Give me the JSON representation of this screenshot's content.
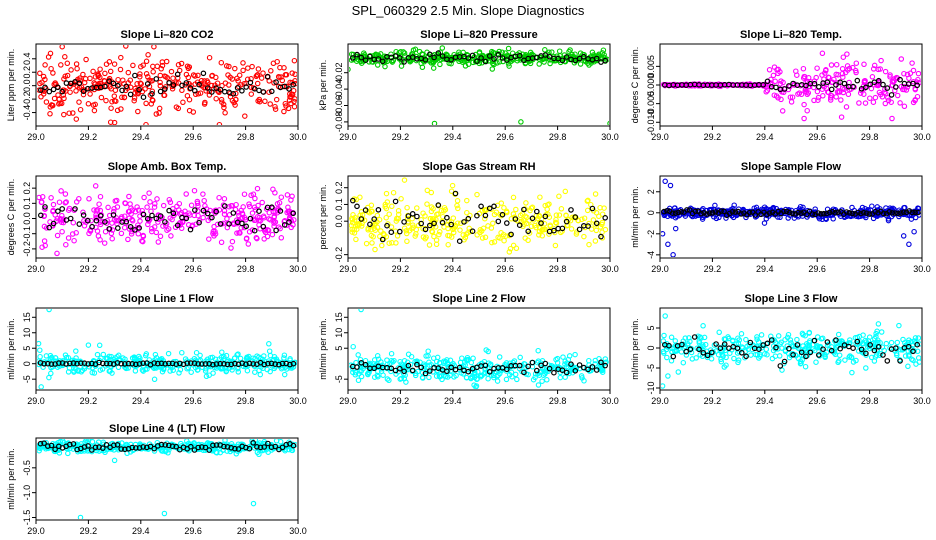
{
  "page_title": "SPL_060329  2.5 Min. Slope Diagnostics",
  "colors": {
    "red": "#ff0000",
    "green": "#00cc00",
    "magenta": "#ff00ff",
    "yellow": "#ffff00",
    "blue": "#0000dd",
    "cyan": "#00ffff",
    "overlay": "#000000"
  },
  "chart_data": [
    {
      "type": "scatter",
      "title": "Slope Li–820 CO2",
      "ylabel": "Liter ppm per min.",
      "color": "red",
      "xlim": [
        29.0,
        30.0
      ],
      "ylim": [
        -0.6,
        0.62
      ],
      "xticks": [
        29.0,
        29.2,
        29.4,
        29.6,
        29.8,
        30.0
      ],
      "xtick_labels": [
        "29.0",
        "29.2",
        "29.4",
        "29.6",
        "29.8",
        "30.0"
      ],
      "yticks": [
        -0.4,
        -0.2,
        0.0,
        0.2,
        0.4
      ],
      "ytick_labels": [
        "-0.4",
        "-0.2",
        "0.0",
        "0.2",
        "0.4"
      ],
      "points": 360,
      "spread": 0.22,
      "center": 0.0,
      "overlay_points": 60,
      "overlay_spread": 0.1,
      "outliers": [
        [
          29.1,
          0.58
        ],
        [
          29.45,
          0.58
        ],
        [
          29.42,
          -0.58
        ],
        [
          29.7,
          -0.58
        ],
        [
          29.3,
          -0.55
        ]
      ]
    },
    {
      "type": "scatter",
      "title": "Slope Li–820 Pressure",
      "ylabel": "kPa per min.",
      "color": "green",
      "xlim": [
        29.0,
        30.0
      ],
      "ylim": [
        -0.085,
        0.015
      ],
      "xticks": [
        29.0,
        29.2,
        29.4,
        29.6,
        29.8,
        30.0
      ],
      "xtick_labels": [
        "29.0",
        "29.2",
        "29.4",
        "29.6",
        "29.8",
        "30.0"
      ],
      "yticks": [
        -0.08,
        -0.06,
        -0.04,
        -0.02
      ],
      "ytick_labels": [
        "-0.08",
        "-0.06",
        "-0.04",
        "-0.02"
      ],
      "points": 380,
      "spread": 0.005,
      "center": -0.002,
      "overlay_points": 60,
      "overlay_spread": 0.003,
      "outliers": [
        [
          29.33,
          -0.082
        ],
        [
          29.66,
          -0.08
        ],
        [
          30.0,
          -0.082
        ],
        [
          29.0,
          -0.016
        ]
      ]
    },
    {
      "type": "scatter",
      "title": "Slope Li–820 Temp.",
      "ylabel": "degrees C per min.",
      "color": "magenta",
      "xlim": [
        29.0,
        30.0
      ],
      "ylim": [
        -0.011,
        0.011
      ],
      "xticks": [
        29.0,
        29.2,
        29.4,
        29.6,
        29.8,
        30.0
      ],
      "xtick_labels": [
        "29.0",
        "29.2",
        "29.4",
        "29.6",
        "29.8",
        "30.0"
      ],
      "yticks": [
        -0.01,
        -0.005,
        0.0,
        0.005
      ],
      "ytick_labels": [
        "-0.010",
        "-0.005",
        "0.000",
        "0.005"
      ],
      "points": 340,
      "spread": 0.0035,
      "center": 0.0,
      "overlay_points": 60,
      "overlay_spread": 0.001,
      "start_flat": 29.4,
      "outliers": [
        [
          29.62,
          0.0085
        ],
        [
          29.55,
          -0.009
        ]
      ]
    },
    {
      "type": "scatter",
      "title": "Slope Amb. Box Temp.",
      "ylabel": "degrees C per min.",
      "color": "magenta",
      "xlim": [
        29.0,
        30.0
      ],
      "ylim": [
        -0.26,
        0.28
      ],
      "xticks": [
        29.0,
        29.2,
        29.4,
        29.6,
        29.8,
        30.0
      ],
      "xtick_labels": [
        "29.0",
        "29.2",
        "29.4",
        "29.6",
        "29.8",
        "30.0"
      ],
      "yticks": [
        -0.2,
        -0.1,
        0.0,
        0.1,
        0.2
      ],
      "ytick_labels": [
        "-0.2",
        "-0.1",
        "0.0",
        "0.1",
        "0.2"
      ],
      "points": 360,
      "spread": 0.09,
      "center": 0.0,
      "overlay_points": 60,
      "overlay_spread": 0.05,
      "outliers": [
        [
          29.08,
          -0.23
        ]
      ]
    },
    {
      "type": "scatter",
      "title": "Slope Gas Stream RH",
      "ylabel": "percent per min.",
      "color": "yellow",
      "xlim": [
        29.0,
        30.0
      ],
      "ylim": [
        -0.22,
        0.27
      ],
      "xticks": [
        29.0,
        29.2,
        29.4,
        29.6,
        29.8,
        30.0
      ],
      "xtick_labels": [
        "29.0",
        "29.2",
        "29.4",
        "29.6",
        "29.8",
        "30.0"
      ],
      "yticks": [
        -0.2,
        0.0,
        0.1,
        0.2
      ],
      "ytick_labels": [
        "-0.2",
        "0.0",
        "0.1",
        "0.2"
      ],
      "points": 340,
      "spread": 0.085,
      "center": 0.0,
      "overlay_points": 60,
      "overlay_spread": 0.07,
      "outliers": []
    },
    {
      "type": "scatter",
      "title": "Slope Sample Flow",
      "ylabel": "ml/min per min.",
      "color": "blue",
      "xlim": [
        29.0,
        30.0
      ],
      "ylim": [
        -4.3,
        3.5
      ],
      "xticks": [
        29.0,
        29.2,
        29.4,
        29.6,
        29.8,
        30.0
      ],
      "xtick_labels": [
        "29.0",
        "29.2",
        "29.4",
        "29.6",
        "29.8",
        "30.0"
      ],
      "yticks": [
        -4,
        -2,
        0,
        2
      ],
      "ytick_labels": [
        "-4",
        "-2",
        "0",
        "2"
      ],
      "points": 380,
      "spread": 0.3,
      "center": 0.0,
      "overlay_points": 90,
      "overlay_spread": 0.12,
      "outliers": [
        [
          29.02,
          3.0
        ],
        [
          29.04,
          2.6
        ],
        [
          29.01,
          -2.0
        ],
        [
          29.03,
          -3.0
        ],
        [
          29.05,
          -4.0
        ],
        [
          29.06,
          -1.5
        ],
        [
          29.95,
          -3.0
        ],
        [
          29.97,
          -1.8
        ],
        [
          29.93,
          -2.2
        ]
      ]
    },
    {
      "type": "scatter",
      "title": "Slope Line 1 Flow",
      "ylabel": "ml/min per min.",
      "color": "cyan",
      "xlim": [
        29.0,
        30.0
      ],
      "ylim": [
        -8.5,
        18
      ],
      "xticks": [
        29.0,
        29.2,
        29.4,
        29.6,
        29.8,
        30.0
      ],
      "xtick_labels": [
        "29.0",
        "29.2",
        "29.4",
        "29.6",
        "29.8",
        "30.0"
      ],
      "yticks": [
        -5,
        0,
        5,
        10,
        15
      ],
      "ytick_labels": [
        "-5",
        "0",
        "5",
        "10",
        "15"
      ],
      "points": 360,
      "spread": 1.8,
      "center": 0.0,
      "overlay_points": 70,
      "overlay_spread": 0.2,
      "outliers": [
        [
          29.05,
          17.5
        ],
        [
          29.02,
          -7.5
        ],
        [
          29.01,
          6.5
        ],
        [
          29.2,
          6.0
        ]
      ]
    },
    {
      "type": "scatter",
      "title": "Slope Line 2 Flow",
      "ylabel": "ml/min per min.",
      "color": "cyan",
      "xlim": [
        29.0,
        30.0
      ],
      "ylim": [
        -8.5,
        18
      ],
      "xticks": [
        29.0,
        29.2,
        29.4,
        29.6,
        29.8,
        30.0
      ],
      "xtick_labels": [
        "29.0",
        "29.2",
        "29.4",
        "29.6",
        "29.8",
        "30.0"
      ],
      "yticks": [
        -5,
        5,
        10,
        15
      ],
      "ytick_labels": [
        "-5",
        "5",
        "10",
        "15"
      ],
      "points": 360,
      "spread": 2.2,
      "center": -1.5,
      "overlay_points": 60,
      "overlay_spread": 1.2,
      "outliers": [
        [
          29.05,
          17.5
        ],
        [
          29.02,
          5.5
        ]
      ]
    },
    {
      "type": "scatter",
      "title": "Slope Line 3 Flow",
      "ylabel": "ml/min per min.",
      "color": "cyan",
      "xlim": [
        29.0,
        30.0
      ],
      "ylim": [
        -10.5,
        10
      ],
      "xticks": [
        29.0,
        29.2,
        29.4,
        29.6,
        29.8,
        30.0
      ],
      "xtick_labels": [
        "29.0",
        "29.2",
        "29.4",
        "29.6",
        "29.8",
        "30.0"
      ],
      "yticks": [
        -10,
        -5,
        0,
        5
      ],
      "ytick_labels": [
        "-10",
        "-5",
        "0",
        "5"
      ],
      "points": 360,
      "spread": 2.2,
      "center": 0.0,
      "overlay_points": 60,
      "overlay_spread": 1.6,
      "outliers": [
        [
          29.02,
          8.0
        ],
        [
          29.01,
          -9.5
        ],
        [
          29.03,
          -7.0
        ],
        [
          29.07,
          -6.0
        ]
      ]
    },
    {
      "type": "scatter",
      "title": "Slope Line 4 (LT) Flow",
      "ylabel": "ml/min per min.",
      "color": "cyan",
      "xlim": [
        29.0,
        30.0
      ],
      "ylim": [
        -1.55,
        0.1
      ],
      "xticks": [
        29.0,
        29.2,
        29.4,
        29.6,
        29.8,
        30.0
      ],
      "xtick_labels": [
        "29.0",
        "29.2",
        "29.4",
        "29.6",
        "29.8",
        "30.0"
      ],
      "yticks": [
        -1.5,
        -1.0,
        -0.5
      ],
      "ytick_labels": [
        "-1.5",
        "-1.0",
        "-0.5"
      ],
      "points": 380,
      "spread": 0.06,
      "center": -0.08,
      "overlay_points": 70,
      "overlay_spread": 0.04,
      "outliers": [
        [
          29.17,
          -1.5
        ],
        [
          29.49,
          -1.42
        ],
        [
          29.83,
          -1.22
        ],
        [
          29.3,
          -0.35
        ]
      ]
    }
  ]
}
